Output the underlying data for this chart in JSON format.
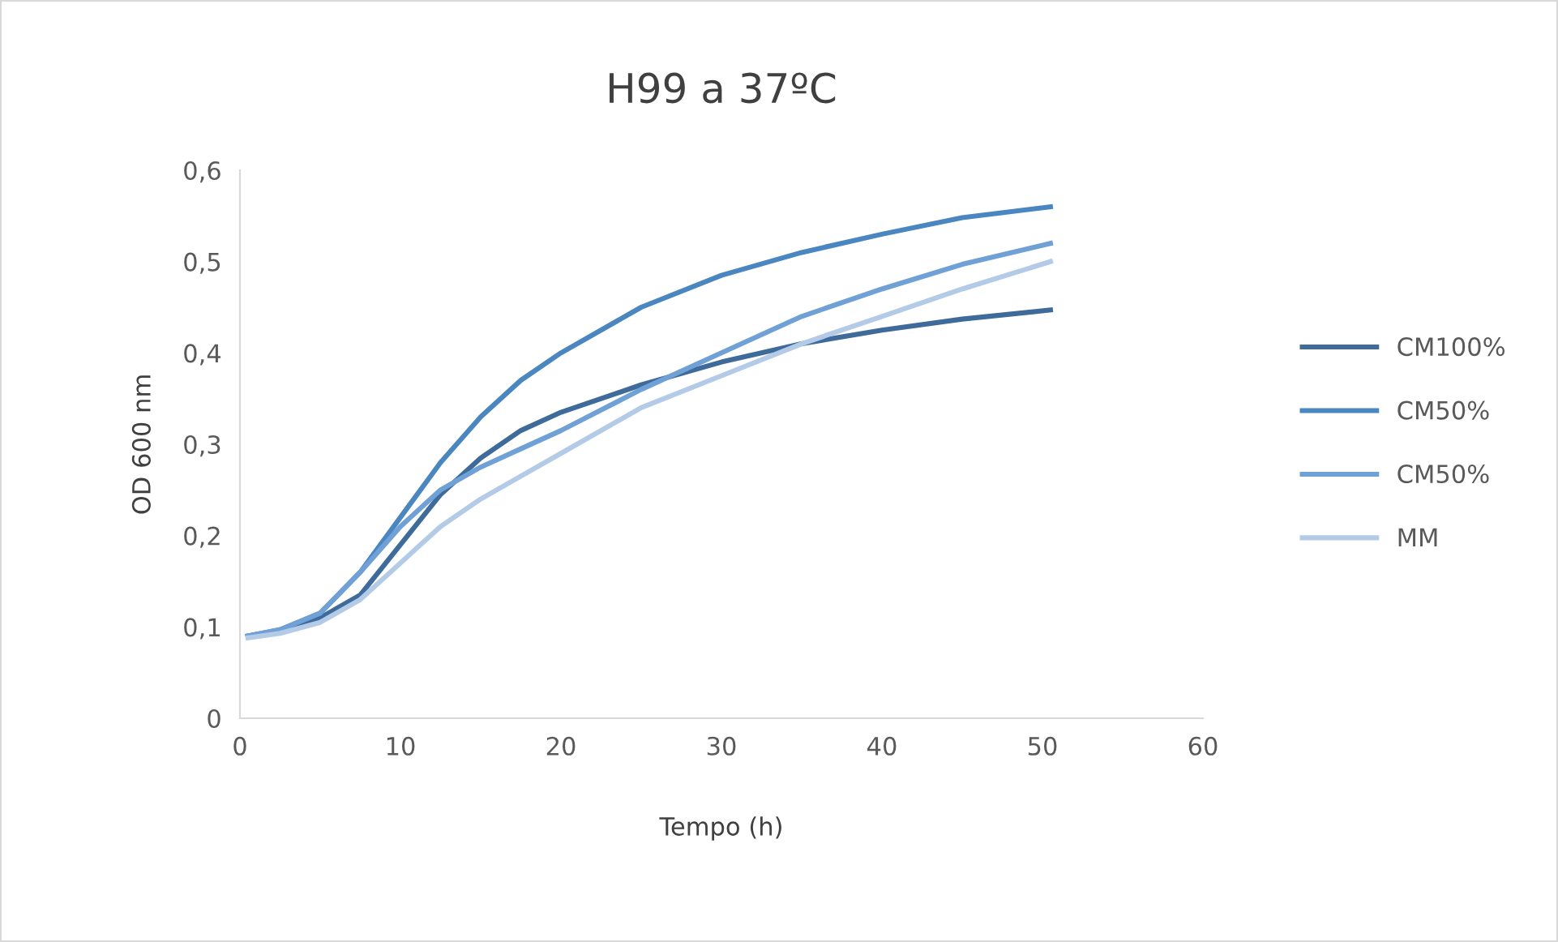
{
  "chart_data": {
    "type": "line",
    "title": "H99 a 37ºC",
    "xlabel": "Tempo (h)",
    "ylabel": "OD 600 nm",
    "x": [
      0.5,
      2.5,
      5,
      7.5,
      10,
      12.5,
      15,
      17.5,
      20,
      25,
      30,
      35,
      40,
      45,
      50.5
    ],
    "series": [
      {
        "name": "CM100%",
        "color": "#3e6b9a",
        "values": [
          0.09,
          0.095,
          0.11,
          0.135,
          0.19,
          0.245,
          0.285,
          0.315,
          0.335,
          0.365,
          0.39,
          0.41,
          0.425,
          0.437,
          0.447
        ]
      },
      {
        "name": "CM50%",
        "color": "#4a86c0",
        "values": [
          0.09,
          0.097,
          0.115,
          0.16,
          0.22,
          0.28,
          0.33,
          0.37,
          0.4,
          0.45,
          0.485,
          0.51,
          0.53,
          0.548,
          0.56
        ]
      },
      {
        "name": "CM50%",
        "color": "#6fa0d6",
        "values": [
          0.09,
          0.097,
          0.115,
          0.16,
          0.21,
          0.25,
          0.275,
          0.295,
          0.315,
          0.36,
          0.4,
          0.44,
          0.47,
          0.497,
          0.52
        ]
      },
      {
        "name": "MM",
        "color": "#b4cbe8",
        "values": [
          0.088,
          0.093,
          0.105,
          0.13,
          0.17,
          0.21,
          0.24,
          0.265,
          0.29,
          0.34,
          0.375,
          0.41,
          0.44,
          0.47,
          0.5
        ]
      }
    ],
    "xlim": [
      0,
      60
    ],
    "xticks": [
      0,
      10,
      20,
      30,
      40,
      50,
      60
    ],
    "ylim": [
      0,
      0.6
    ],
    "yticks": [
      {
        "value": 0,
        "label": "0"
      },
      {
        "value": 0.1,
        "label": "0,1"
      },
      {
        "value": 0.2,
        "label": "0,2"
      },
      {
        "value": 0.3,
        "label": "0,3"
      },
      {
        "value": 0.4,
        "label": "0,4"
      },
      {
        "value": 0.5,
        "label": "0,5"
      },
      {
        "value": 0.6,
        "label": "0,6"
      }
    ],
    "grid": false,
    "legend": "right",
    "marker": "none",
    "line_style": "solid"
  }
}
